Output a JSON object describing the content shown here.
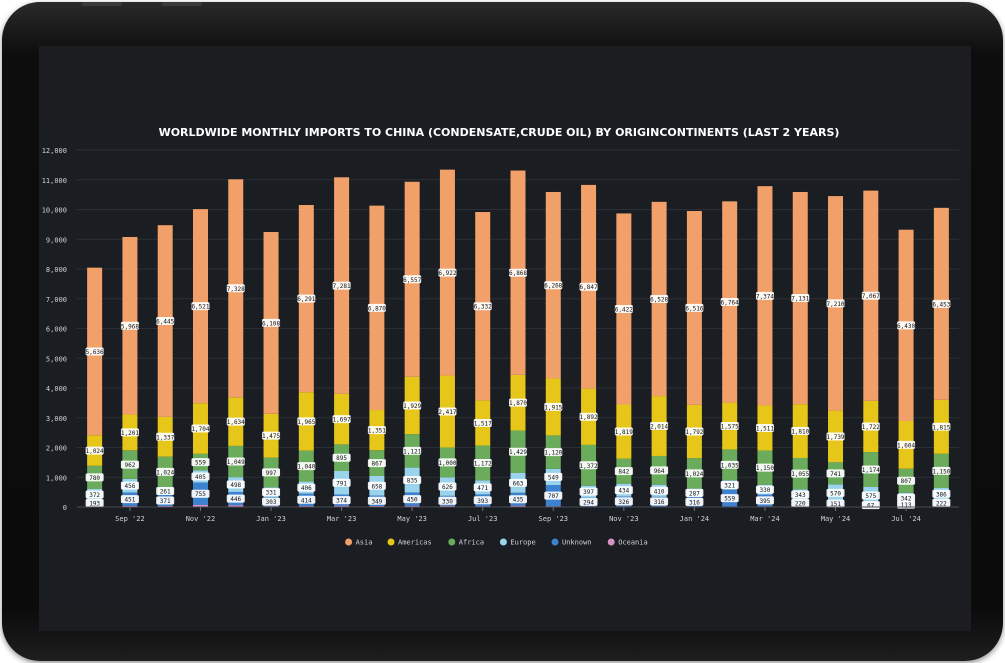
{
  "chart_data": {
    "type": "bar",
    "stacked": true,
    "title": "WORLDWIDE MONTHLY IMPORTS TO CHINA (CONDENSATE,CRUDE OIL) BY ORIGINCONTINENTS (LAST 2 YEARS)",
    "ylim": [
      0,
      12000
    ],
    "yticks": [
      "0",
      "1,000",
      "2,000",
      "3,000",
      "4,000",
      "5,000",
      "6,000",
      "7,000",
      "8,000",
      "9,000",
      "10,000",
      "11,000",
      "12,000"
    ],
    "xtick_labels": [
      "Sep '22",
      "Nov '22",
      "Jan '23",
      "Mar '23",
      "May '23",
      "Jul '23",
      "Sep '23",
      "Nov '23",
      "Jan '24",
      "Mar '24",
      "May '24",
      "Jul '24"
    ],
    "grid": true,
    "legend_position": "bottom",
    "categories": [
      "Aug 2022",
      "Sep 2022",
      "Oct 2022",
      "Nov 2022",
      "Dec 2022",
      "Jan 2023",
      "Feb 2023",
      "Mar 2023",
      "Apr 2023",
      "May 2023",
      "Jun 2023",
      "Jul 2023",
      "Aug 2023",
      "Sep 2023",
      "Oct 2023",
      "Nov 2023",
      "Dec 2023",
      "Jan 2024",
      "Feb 2024",
      "Mar 2024",
      "Apr 2024",
      "May 2024",
      "Jun 2024",
      "Jul 2024",
      "Aug 2024"
    ],
    "series": [
      {
        "name": "Oceania",
        "color": "#d98fc8",
        "values": [
          40,
          38,
          35,
          68,
          60,
          30,
          35,
          45,
          35,
          40,
          45,
          30,
          45,
          30,
          25,
          25,
          25,
          15,
          20,
          25,
          30,
          40,
          30,
          25,
          30
        ]
      },
      {
        "name": "Unknown",
        "color": "#3d82d0",
        "values": [
          193,
          451,
          371,
          755,
          446,
          303,
          414,
          374,
          349,
          450,
          330,
          393,
          435,
          707,
          294,
          326,
          316,
          316,
          559,
          395,
          220,
          151,
          67,
          113,
          222
        ]
      },
      {
        "name": "Europe",
        "color": "#9ad3ec",
        "values": [
          372,
          456,
          261,
          405,
          498,
          331,
          406,
          791,
          658,
          835,
          626,
          471,
          663,
          549,
          397,
          434,
          410,
          287,
          321,
          330,
          343,
          570,
          575,
          342,
          386
        ]
      },
      {
        "name": "Africa",
        "color": "#6aab5c",
        "values": [
          780,
          962,
          1024,
          559,
          1049,
          997,
          1040,
          895,
          867,
          1121,
          1000,
          1172,
          1429,
          1120,
          1372,
          842,
          964,
          1024,
          1035,
          1150,
          1055,
          741,
          1174,
          807,
          1150
        ]
      },
      {
        "name": "Americas",
        "color": "#e6c619",
        "values": [
          1024,
          1201,
          1337,
          1704,
          1634,
          1475,
          1965,
          1697,
          1351,
          1929,
          2417,
          1517,
          1870,
          1915,
          1892,
          1819,
          2014,
          1792,
          1575,
          1511,
          1810,
          1739,
          1722,
          1604,
          1815
        ]
      },
      {
        "name": "Asia",
        "color": "#f2a06a",
        "values": [
          5636,
          5968,
          6445,
          6521,
          7328,
          6108,
          6291,
          7281,
          6870,
          6557,
          6922,
          6332,
          6868,
          6268,
          6847,
          6422,
          6528,
          6516,
          6764,
          7374,
          7131,
          7210,
          7067,
          6430,
          6453
        ]
      }
    ],
    "data_labels": {
      "Asia": [
        "5,636",
        "5,968",
        "6,445",
        "6,521",
        "7,328",
        "6,108",
        "6,291",
        "7,281",
        "6,870",
        "6,557",
        "6,922",
        "6,332",
        "6,868",
        "6,268",
        "6,847",
        "6,422",
        "6,528",
        "6,516",
        "6,764",
        "7,374",
        "7,131",
        "7,210",
        "7,067",
        "6,430",
        "6,453"
      ],
      "Americas": [
        "1,024",
        "1,201",
        "1,337",
        "1,704",
        "1,634",
        "1,475",
        "1,965",
        "1,697",
        "1,351",
        "1,929",
        "2,417",
        "1,517",
        "1,870",
        "1,915",
        "1,892",
        "1,819",
        "2,014",
        "1,792",
        "1,575",
        "1,511",
        "1,810",
        "1,739",
        "1,722",
        "1,604",
        "1,815"
      ],
      "Africa": [
        "780",
        "962",
        "1,024",
        "559",
        "1,049",
        "997",
        "1,040",
        "895",
        "867",
        "1,121",
        "1,000",
        "1,172",
        "1,429",
        "1,120",
        "1,372",
        "842",
        "964",
        "1,024",
        "1,035",
        "1,150",
        "1,055",
        "741",
        "1,174",
        "807",
        "1,150"
      ],
      "Europe": [
        "372",
        "456",
        "261",
        "405",
        "498",
        "331",
        "406",
        "791",
        "658",
        "835",
        "626",
        "471",
        "663",
        "549",
        "397",
        "434",
        "410",
        "287",
        "321",
        "330",
        "343",
        "570",
        "575",
        "342",
        "386"
      ],
      "Unknown": [
        "193",
        "451",
        "371",
        "755",
        "446",
        "303",
        "414",
        "374",
        "349",
        "450",
        "330",
        "393",
        "435",
        "707",
        "294",
        "326",
        "316",
        "316",
        "559",
        "395",
        "220",
        "151",
        "67",
        "113",
        "222"
      ]
    },
    "colors": {
      "background": "#1a1d21",
      "grid": "#2c3036",
      "text": "#ffffff",
      "tick": "#cfd3d8"
    }
  },
  "legend": {
    "items": [
      {
        "name": "Asia",
        "color": "#f2a06a"
      },
      {
        "name": "Americas",
        "color": "#e6c619"
      },
      {
        "name": "Africa",
        "color": "#6aab5c"
      },
      {
        "name": "Europe",
        "color": "#9ad3ec"
      },
      {
        "name": "Unknown",
        "color": "#3d82d0"
      },
      {
        "name": "Oceania",
        "color": "#d98fc8"
      }
    ]
  }
}
